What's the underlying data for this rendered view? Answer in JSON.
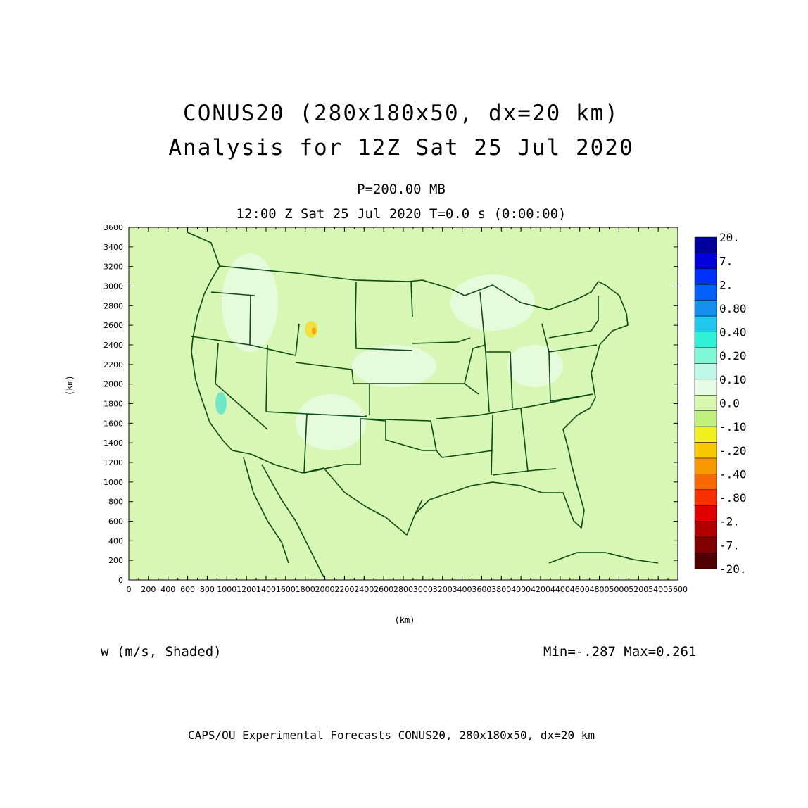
{
  "title": {
    "line1": "CONUS20 (280x180x50, dx=20 km)",
    "line2": "Analysis for 12Z Sat 25 Jul 2020"
  },
  "subtitle": {
    "level": "P=200.00 MB",
    "valid_time": "12:00 Z Sat 25 Jul 2020   T=0.0 s (0:00:00)"
  },
  "axes": {
    "xlabel": "(km)",
    "ylabel": "(km)",
    "xlim": [
      0,
      5600
    ],
    "ylim": [
      0,
      3600
    ],
    "xticks": [
      "0",
      "200",
      "400",
      "600",
      "800",
      "1000",
      "1200",
      "1400",
      "1600",
      "1800",
      "2000",
      "2200",
      "2400",
      "2600",
      "2800",
      "3000",
      "3200",
      "3400",
      "3600",
      "3800",
      "4000",
      "4200",
      "4400",
      "4600",
      "4800",
      "5000",
      "5200",
      "5400",
      "5600"
    ],
    "yticks": [
      "0",
      "200",
      "400",
      "600",
      "800",
      "1000",
      "1200",
      "1400",
      "1600",
      "1800",
      "2000",
      "2200",
      "2400",
      "2600",
      "2800",
      "3000",
      "3200",
      "3400",
      "3600"
    ]
  },
  "field": {
    "label": "w (m/s, Shaded)",
    "minmax": "Min=-.287 Max=0.261"
  },
  "colorbar": {
    "labels": [
      "20.",
      "7.",
      "2.",
      "0.80",
      "0.40",
      "0.20",
      "0.10",
      "0.0",
      "-.10",
      "-.20",
      "-.40",
      "-.80",
      "-2.",
      "-7.",
      "-20."
    ],
    "colors": [
      "#00009c",
      "#0000d8",
      "#0030f8",
      "#0060f8",
      "#1890f0",
      "#20c8f0",
      "#30f0d8",
      "#80f8d8",
      "#c0f8e8",
      "#e8fce8",
      "#d8f8b0",
      "#c0f080",
      "#f0f020",
      "#f8c800",
      "#f89800",
      "#f86800",
      "#f83000",
      "#e00000",
      "#b00000",
      "#800000",
      "#500000"
    ]
  },
  "map": {
    "background_color": "#d8f6b4",
    "border_color": "#0a4a14"
  },
  "footer": "CAPS/OU Experimental Forecasts  CONUS20, 280x180x50, dx=20 km"
}
